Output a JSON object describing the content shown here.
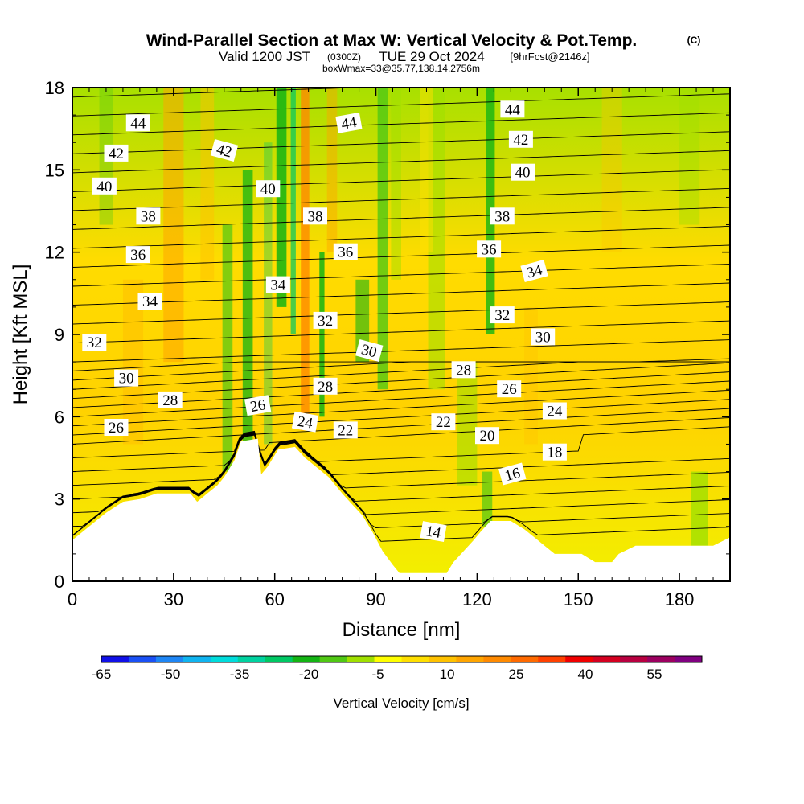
{
  "title": {
    "main": "Wind-Parallel Section at Max W: Vertical Velocity & Pot.Temp.",
    "copyright": "(C)",
    "valid_prefix": "Valid 1200 JST",
    "valid_utc": "(0300Z)",
    "valid_date": "TUE 29 Oct 2024",
    "forecast": "[9hrFcst@2146z]",
    "box_info": "boxWmax=33@35.77,138.14,2756m"
  },
  "chart_data": {
    "type": "heatmap",
    "xlabel": "Distance [nm]",
    "ylabel": "Height [Kft MSL]",
    "xlim": [
      0,
      195
    ],
    "ylim": [
      0,
      18
    ],
    "x_ticks": [
      "0",
      "30",
      "60",
      "90",
      "120",
      "150",
      "180"
    ],
    "y_ticks": [
      "0",
      "3",
      "6",
      "9",
      "12",
      "15",
      "18"
    ],
    "colorbar": {
      "label": "Vertical Velocity [cm/s]",
      "tick_labels": [
        "-65",
        "-50",
        "-35",
        "-20",
        "-5",
        "10",
        "25",
        "40",
        "55"
      ],
      "colors": [
        "#1010e8",
        "#1a50f5",
        "#1e86f5",
        "#10b4f0",
        "#00dcdc",
        "#00d2a0",
        "#00c864",
        "#14b414",
        "#50c814",
        "#a0e000",
        "#ffff00",
        "#ffdf00",
        "#ffc200",
        "#ffa500",
        "#ff8a00",
        "#ff6a00",
        "#ff4000",
        "#f00000",
        "#d40020",
        "#b80040",
        "#9c0060",
        "#800080"
      ]
    },
    "terrain_kft": [
      [
        0,
        1.5
      ],
      [
        10,
        2.5
      ],
      [
        15,
        2.9
      ],
      [
        20,
        3.0
      ],
      [
        25,
        3.2
      ],
      [
        35,
        3.2
      ],
      [
        37,
        2.9
      ],
      [
        40,
        3.2
      ],
      [
        43,
        3.5
      ],
      [
        45,
        3.8
      ],
      [
        48,
        4.4
      ],
      [
        50,
        5.1
      ],
      [
        55,
        5.2
      ],
      [
        56,
        3.9
      ],
      [
        58,
        4.2
      ],
      [
        61,
        4.8
      ],
      [
        66,
        4.9
      ],
      [
        69,
        4.5
      ],
      [
        72,
        4.2
      ],
      [
        76,
        3.8
      ],
      [
        80,
        3.2
      ],
      [
        83,
        2.8
      ],
      [
        86,
        2.4
      ],
      [
        89,
        1.8
      ],
      [
        92,
        1.1
      ],
      [
        95,
        0.6
      ],
      [
        97,
        0.3
      ],
      [
        104,
        0.3
      ],
      [
        111,
        0.3
      ],
      [
        113,
        0.7
      ],
      [
        116,
        1.1
      ],
      [
        119,
        1.5
      ],
      [
        121,
        1.8
      ],
      [
        124,
        2.2
      ],
      [
        130,
        2.2
      ],
      [
        134,
        1.9
      ],
      [
        137,
        1.6
      ],
      [
        140,
        1.3
      ],
      [
        143,
        1.0
      ],
      [
        151,
        1.0
      ],
      [
        155,
        0.7
      ],
      [
        160,
        0.7
      ],
      [
        162,
        1.0
      ],
      [
        167,
        1.3
      ],
      [
        190,
        1.3
      ],
      [
        195,
        1.6
      ]
    ],
    "theta_labels": [
      {
        "value": "44",
        "x": 19.5,
        "y": 16.7,
        "rot": 0
      },
      {
        "value": "42",
        "x": 13,
        "y": 15.6,
        "rot": 0
      },
      {
        "value": "40",
        "x": 9.5,
        "y": 14.4,
        "rot": 0
      },
      {
        "value": "38",
        "x": 22.5,
        "y": 13.3,
        "rot": 0
      },
      {
        "value": "36",
        "x": 19.5,
        "y": 11.9,
        "rot": 0
      },
      {
        "value": "34",
        "x": 23,
        "y": 10.2,
        "rot": 0
      },
      {
        "value": "32",
        "x": 6.5,
        "y": 8.7,
        "rot": 0
      },
      {
        "value": "30",
        "x": 16,
        "y": 7.4,
        "rot": 0
      },
      {
        "value": "28",
        "x": 29,
        "y": 6.6,
        "rot": 0
      },
      {
        "value": "26",
        "x": 13,
        "y": 5.6,
        "rot": 0
      },
      {
        "value": "42",
        "x": 45,
        "y": 15.7,
        "rot": 15
      },
      {
        "value": "40",
        "x": 58,
        "y": 14.3,
        "rot": 0
      },
      {
        "value": "38",
        "x": 72,
        "y": 13.3,
        "rot": 0
      },
      {
        "value": "36",
        "x": 81,
        "y": 12.0,
        "rot": 0
      },
      {
        "value": "34",
        "x": 61,
        "y": 10.8,
        "rot": 0
      },
      {
        "value": "32",
        "x": 75,
        "y": 9.5,
        "rot": 0
      },
      {
        "value": "30",
        "x": 88,
        "y": 8.4,
        "rot": 15
      },
      {
        "value": "28",
        "x": 75,
        "y": 7.1,
        "rot": 0
      },
      {
        "value": "26",
        "x": 55,
        "y": 6.4,
        "rot": -10
      },
      {
        "value": "24",
        "x": 69,
        "y": 5.8,
        "rot": 10
      },
      {
        "value": "22",
        "x": 81,
        "y": 5.5,
        "rot": 0
      },
      {
        "value": "44",
        "x": 82,
        "y": 16.7,
        "rot": -10
      },
      {
        "value": "44",
        "x": 130.5,
        "y": 17.2,
        "rot": 0
      },
      {
        "value": "42",
        "x": 133,
        "y": 16.1,
        "rot": 0
      },
      {
        "value": "40",
        "x": 133.5,
        "y": 14.9,
        "rot": 0
      },
      {
        "value": "38",
        "x": 127.5,
        "y": 13.3,
        "rot": 0
      },
      {
        "value": "36",
        "x": 123.5,
        "y": 12.1,
        "rot": 0
      },
      {
        "value": "34",
        "x": 137,
        "y": 11.3,
        "rot": -15
      },
      {
        "value": "32",
        "x": 127.5,
        "y": 9.7,
        "rot": 0
      },
      {
        "value": "30",
        "x": 139.5,
        "y": 8.9,
        "rot": 0
      },
      {
        "value": "28",
        "x": 116,
        "y": 7.7,
        "rot": 0
      },
      {
        "value": "26",
        "x": 129.5,
        "y": 7.0,
        "rot": 0
      },
      {
        "value": "24",
        "x": 143,
        "y": 6.2,
        "rot": 0
      },
      {
        "value": "22",
        "x": 110,
        "y": 5.8,
        "rot": 0
      },
      {
        "value": "20",
        "x": 123,
        "y": 5.3,
        "rot": 0
      },
      {
        "value": "18",
        "x": 143,
        "y": 4.7,
        "rot": 0
      },
      {
        "value": "16",
        "x": 130.5,
        "y": 3.9,
        "rot": -15
      },
      {
        "value": "14",
        "x": 107,
        "y": 1.8,
        "rot": 10
      }
    ]
  }
}
